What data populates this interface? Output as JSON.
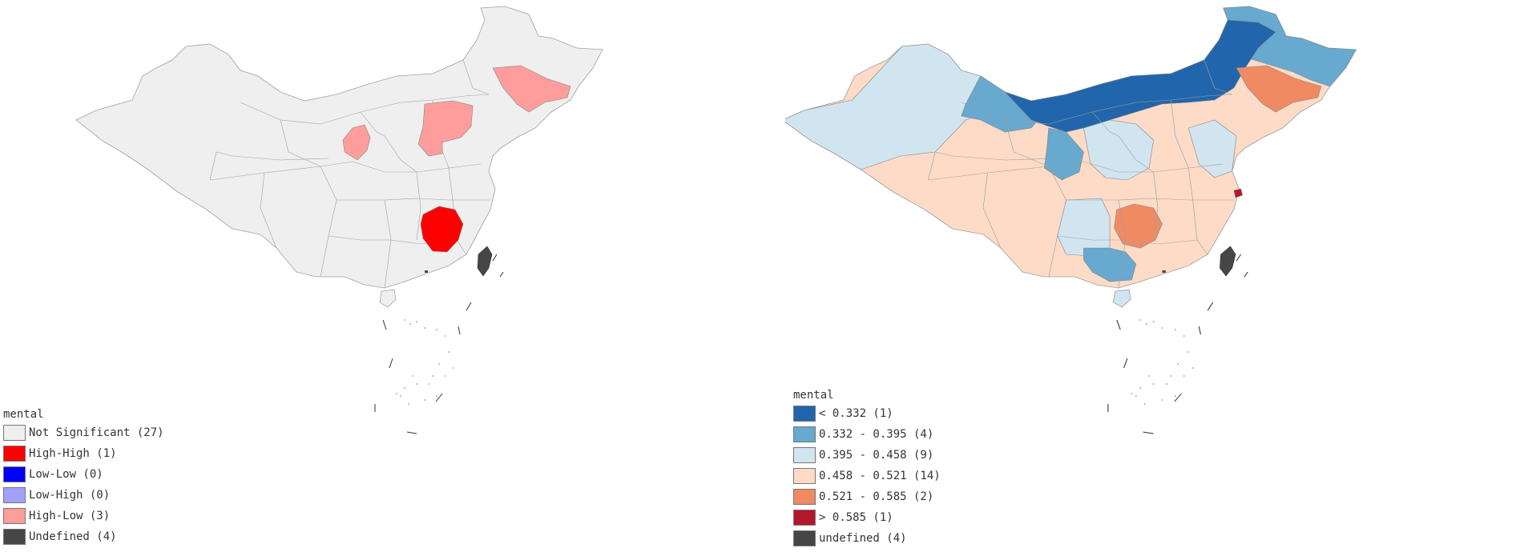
{
  "maps": [
    {
      "id": "lisa",
      "legend": {
        "title": "mental",
        "items": [
          {
            "label": "Not Significant (27)",
            "color": "#efefef"
          },
          {
            "label": "High-High (1)",
            "color": "#ff0000"
          },
          {
            "label": "Low-Low (0)",
            "color": "#0000ff"
          },
          {
            "label": "Low-High (0)",
            "color": "#a0a0ff"
          },
          {
            "label": "High-Low (3)",
            "color": "#ff9c9c"
          },
          {
            "label": "Undefined (4)",
            "color": "#464646"
          }
        ]
      }
    },
    {
      "id": "natural-breaks",
      "legend": {
        "title": "mental",
        "items": [
          {
            "label": "< 0.332 (1)",
            "color": "#2166ac"
          },
          {
            "label": "0.332 - 0.395 (4)",
            "color": "#67a9cf"
          },
          {
            "label": "0.395 - 0.458 (9)",
            "color": "#d1e5f0"
          },
          {
            "label": "0.458 - 0.521 (14)",
            "color": "#fddbc7"
          },
          {
            "label": "0.521 - 0.585 (2)",
            "color": "#ef8a62"
          },
          {
            "label": "> 0.585 (1)",
            "color": "#b2182b"
          },
          {
            "label": "undefined (4)",
            "color": "#464646"
          }
        ]
      }
    }
  ],
  "colors": {
    "border": "#a0a0a0",
    "base": "#efefef"
  }
}
